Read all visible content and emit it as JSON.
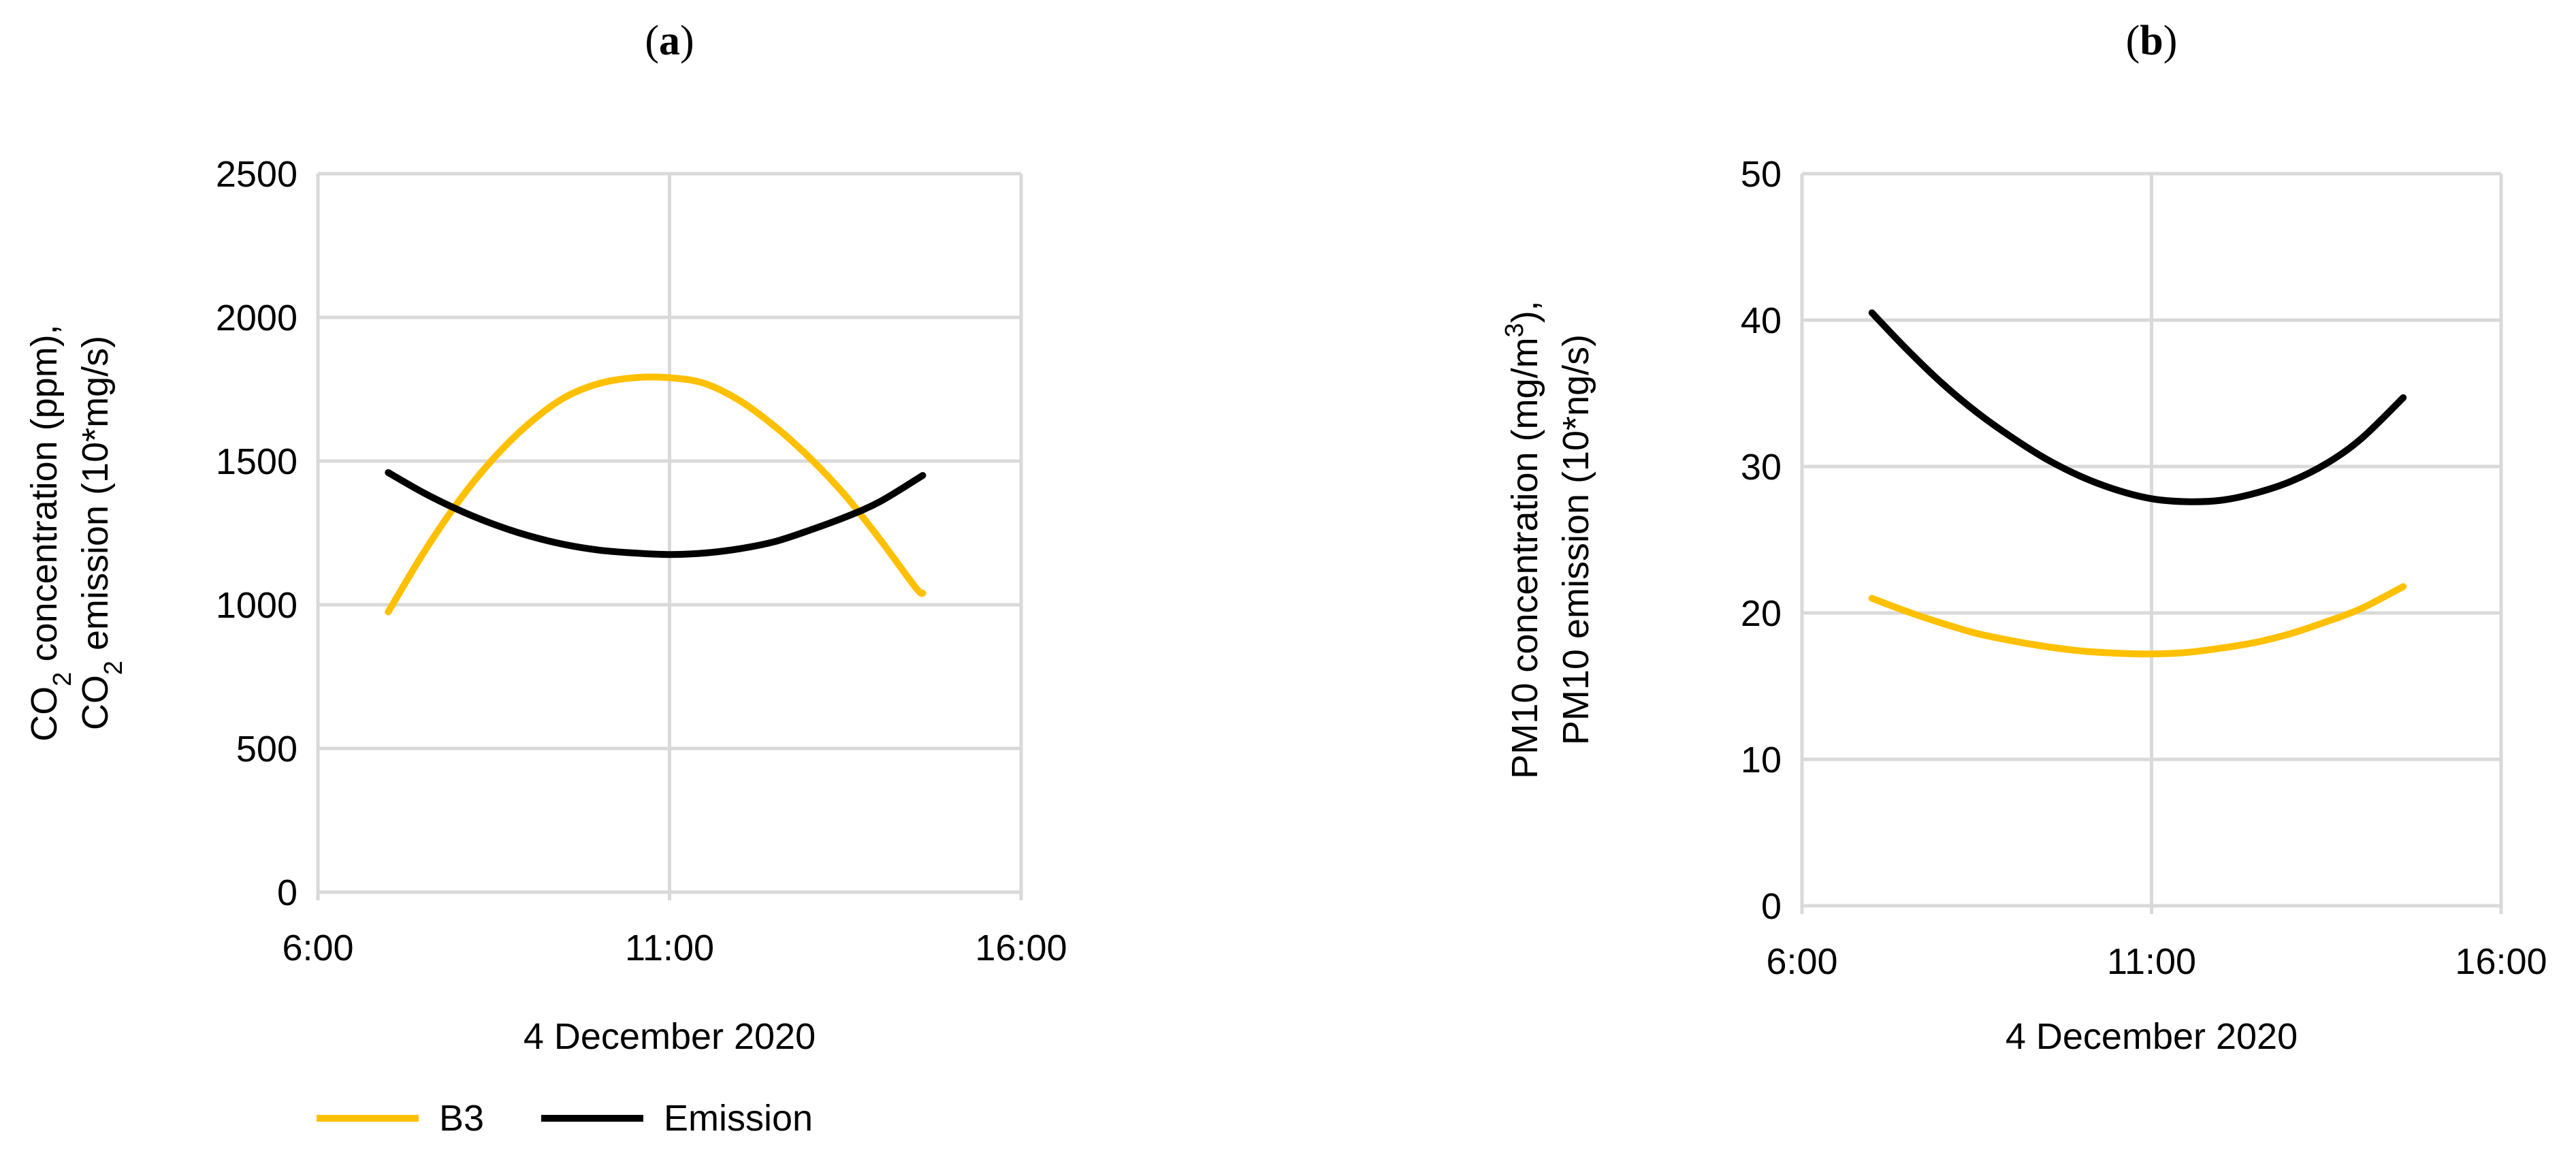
{
  "legend": {
    "placement": "bottom-left",
    "entries": [
      {
        "name": "B3",
        "color": "#ffc000"
      },
      {
        "name": "Emission",
        "color": "#000000"
      }
    ]
  },
  "chart_data": [
    {
      "type": "line",
      "panel": "a",
      "xlabel": "4 December 2020",
      "ylabel": {
        "line1": [
          {
            "t": "CO",
            "sub": false
          },
          {
            "t": "2",
            "sub": true
          },
          {
            "t": " concentration (ppm),",
            "sub": false
          }
        ],
        "line2": [
          {
            "t": "CO",
            "sub": false
          },
          {
            "t": "2",
            "sub": true
          },
          {
            "t": " emission (10*mg/s)",
            "sub": false
          }
        ]
      },
      "xlim": [
        6,
        16
      ],
      "ylim": [
        0,
        2500
      ],
      "xticks": [
        {
          "value": 6,
          "label": "6:00"
        },
        {
          "value": 11,
          "label": "11:00"
        },
        {
          "value": 16,
          "label": "16:00"
        }
      ],
      "yticks": [
        0,
        500,
        1000,
        1500,
        2000,
        2500
      ],
      "grid": true,
      "series": [
        {
          "name": "B3",
          "color": "#ffc000",
          "points": [
            [
              7.0,
              975
            ],
            [
              7.5,
              1180
            ],
            [
              8.0,
              1360
            ],
            [
              8.5,
              1510
            ],
            [
              9.0,
              1630
            ],
            [
              9.5,
              1720
            ],
            [
              10.0,
              1770
            ],
            [
              10.5,
              1790
            ],
            [
              11.0,
              1790
            ],
            [
              11.5,
              1770
            ],
            [
              12.0,
              1710
            ],
            [
              12.5,
              1620
            ],
            [
              13.0,
              1510
            ],
            [
              13.5,
              1380
            ],
            [
              14.0,
              1225
            ],
            [
              14.5,
              1060
            ],
            [
              14.6,
              1040
            ]
          ]
        },
        {
          "name": "Emission",
          "color": "#000000",
          "points": [
            [
              7.0,
              1460
            ],
            [
              7.5,
              1390
            ],
            [
              8.0,
              1330
            ],
            [
              8.5,
              1280
            ],
            [
              9.0,
              1240
            ],
            [
              9.5,
              1210
            ],
            [
              10.0,
              1190
            ],
            [
              10.5,
              1180
            ],
            [
              11.0,
              1175
            ],
            [
              11.5,
              1180
            ],
            [
              12.0,
              1195
            ],
            [
              12.5,
              1220
            ],
            [
              13.0,
              1260
            ],
            [
              13.5,
              1305
            ],
            [
              14.0,
              1360
            ],
            [
              14.6,
              1450
            ]
          ]
        }
      ]
    },
    {
      "type": "line",
      "panel": "b",
      "xlabel": "4 December 2020",
      "ylabel": {
        "line1": [
          {
            "t": "PM10 concentration  (mg/m",
            "sub": false
          },
          {
            "t": "3",
            "sup": true
          },
          {
            "t": "),",
            "sub": false
          }
        ],
        "line2": [
          {
            "t": "PM10 emission (10*ng/s)",
            "sub": false
          }
        ]
      },
      "xlim": [
        6,
        16
      ],
      "ylim": [
        0,
        50
      ],
      "xticks": [
        {
          "value": 6,
          "label": "6:00"
        },
        {
          "value": 11,
          "label": "11:00"
        },
        {
          "value": 16,
          "label": "16:00"
        }
      ],
      "yticks": [
        0,
        10,
        20,
        30,
        40,
        50
      ],
      "grid": true,
      "series": [
        {
          "name": "B3",
          "color": "#ffc000",
          "points": [
            [
              7.0,
              21.0
            ],
            [
              7.5,
              20.1
            ],
            [
              8.0,
              19.3
            ],
            [
              8.5,
              18.6
            ],
            [
              9.0,
              18.1
            ],
            [
              9.5,
              17.7
            ],
            [
              10.0,
              17.4
            ],
            [
              10.5,
              17.25
            ],
            [
              11.0,
              17.2
            ],
            [
              11.5,
              17.3
            ],
            [
              12.0,
              17.6
            ],
            [
              12.5,
              18.0
            ],
            [
              13.0,
              18.6
            ],
            [
              13.5,
              19.4
            ],
            [
              14.0,
              20.3
            ],
            [
              14.6,
              21.8
            ]
          ]
        },
        {
          "name": "Emission",
          "color": "#000000",
          "points": [
            [
              7.0,
              40.5
            ],
            [
              7.5,
              38.0
            ],
            [
              8.0,
              35.7
            ],
            [
              8.5,
              33.7
            ],
            [
              9.0,
              32.0
            ],
            [
              9.5,
              30.5
            ],
            [
              10.0,
              29.3
            ],
            [
              10.5,
              28.4
            ],
            [
              11.0,
              27.8
            ],
            [
              11.5,
              27.6
            ],
            [
              12.0,
              27.7
            ],
            [
              12.5,
              28.2
            ],
            [
              13.0,
              29.0
            ],
            [
              13.5,
              30.2
            ],
            [
              14.0,
              31.9
            ],
            [
              14.6,
              34.7
            ]
          ]
        }
      ]
    }
  ]
}
